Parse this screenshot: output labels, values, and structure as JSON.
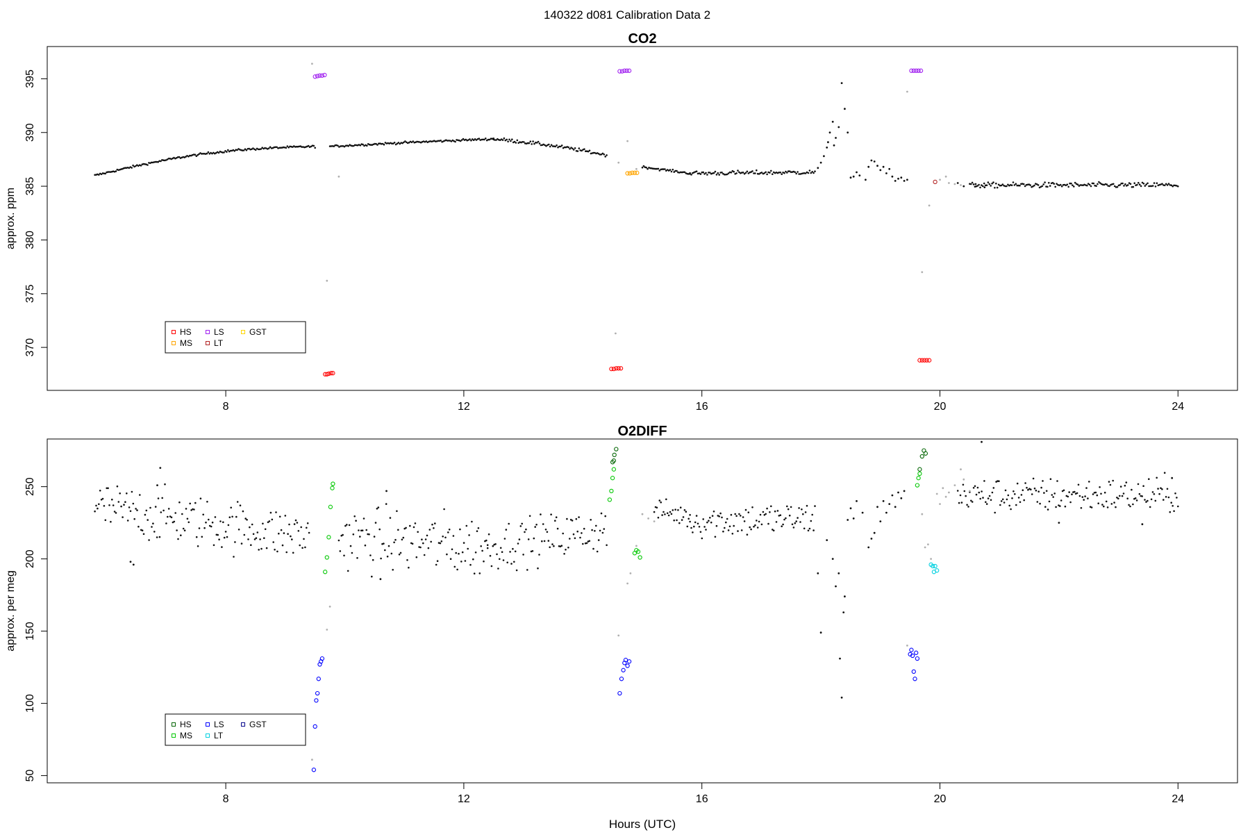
{
  "page_title": "140322   d081   Calibration Data 2",
  "chart_data": [
    {
      "type": "scatter",
      "title": "CO2",
      "ylabel": "approx. ppm",
      "xlabel": "",
      "xlim": [
        5.0,
        25.0
      ],
      "ylim": [
        366.0,
        398.0
      ],
      "xticks": [
        8,
        12,
        16,
        20,
        24
      ],
      "yticks": [
        370,
        375,
        380,
        385,
        390,
        395
      ],
      "legend": {
        "position": "bottom-left",
        "entries": [
          {
            "label": "HS",
            "color": "#ff0000"
          },
          {
            "label": "MS",
            "color": "#ffa500"
          },
          {
            "label": "LS",
            "color": "#a020f0"
          },
          {
            "label": "LT",
            "color": "#b22222"
          },
          {
            "label": "GST",
            "color": "#ffd700"
          }
        ]
      },
      "background_segments": [
        {
          "x0": 5.8,
          "y0": 386.0,
          "x1": 9.5,
          "y1": 388.7,
          "curve": 0.25,
          "noise": 0.05
        },
        {
          "x0": 9.75,
          "y0": 388.7,
          "x1": 12.5,
          "y1": 389.4,
          "curve": 0.05,
          "noise": 0.05
        },
        {
          "x0": 12.5,
          "y0": 389.4,
          "x1": 14.4,
          "y1": 387.9,
          "curve": -0.1,
          "noise": 0.08
        },
        {
          "x0": 15.0,
          "y0": 386.8,
          "x1": 15.8,
          "y1": 386.2,
          "curve": 0.0,
          "noise": 0.05
        },
        {
          "x0": 15.8,
          "y0": 386.2,
          "x1": 17.9,
          "y1": 386.3,
          "curve": 0.0,
          "noise": 0.1
        },
        {
          "x0": 20.5,
          "y0": 385.1,
          "x1": 24.0,
          "y1": 385.1,
          "curve": 0.0,
          "noise": 0.12
        }
      ],
      "background_points": [
        [
          17.95,
          386.7
        ],
        [
          18.0,
          387.2
        ],
        [
          18.05,
          387.8
        ],
        [
          18.1,
          388.6
        ],
        [
          18.12,
          389.1
        ],
        [
          18.15,
          390.0
        ],
        [
          18.2,
          391.0
        ],
        [
          18.22,
          388.8
        ],
        [
          18.25,
          389.5
        ],
        [
          18.3,
          390.5
        ],
        [
          18.35,
          394.6
        ],
        [
          18.4,
          392.2
        ],
        [
          18.45,
          390.0
        ],
        [
          18.5,
          385.8
        ],
        [
          18.55,
          385.9
        ],
        [
          18.6,
          386.3
        ],
        [
          18.65,
          386.0
        ],
        [
          18.75,
          385.6
        ],
        [
          18.8,
          386.8
        ],
        [
          18.85,
          387.4
        ],
        [
          18.9,
          387.3
        ],
        [
          18.95,
          386.9
        ],
        [
          19.0,
          386.5
        ],
        [
          19.05,
          386.8
        ],
        [
          19.1,
          386.2
        ],
        [
          19.15,
          386.6
        ],
        [
          19.2,
          385.9
        ],
        [
          19.25,
          385.5
        ],
        [
          19.3,
          385.7
        ],
        [
          19.35,
          385.8
        ],
        [
          19.4,
          385.5
        ],
        [
          19.45,
          385.6
        ],
        [
          20.3,
          385.3
        ],
        [
          20.4,
          385.0
        ],
        [
          20.6,
          385.2
        ],
        [
          20.75,
          384.9
        ]
      ],
      "grey_points": [
        [
          9.45,
          396.4
        ],
        [
          9.7,
          376.2
        ],
        [
          9.9,
          385.9
        ],
        [
          14.55,
          371.3
        ],
        [
          14.6,
          387.2
        ],
        [
          14.75,
          389.2
        ],
        [
          14.9,
          386.6
        ],
        [
          19.45,
          393.8
        ],
        [
          19.7,
          377.0
        ],
        [
          19.82,
          383.2
        ],
        [
          20.0,
          385.6
        ],
        [
          20.1,
          385.9
        ],
        [
          20.15,
          385.3
        ],
        [
          20.25,
          385.2
        ],
        [
          20.35,
          385.1
        ]
      ],
      "series": [
        {
          "name": "HS",
          "color": "#ff0000",
          "points": [
            [
              9.67,
              367.5
            ],
            [
              9.7,
              367.5
            ],
            [
              9.73,
              367.55
            ],
            [
              9.77,
              367.6
            ],
            [
              9.8,
              367.6
            ],
            [
              14.48,
              368.0
            ],
            [
              14.52,
              368.0
            ],
            [
              14.56,
              368.05
            ],
            [
              14.6,
              368.05
            ],
            [
              14.64,
              368.05
            ],
            [
              19.66,
              368.8
            ],
            [
              19.7,
              368.8
            ],
            [
              19.74,
              368.8
            ],
            [
              19.78,
              368.8
            ],
            [
              19.82,
              368.8
            ]
          ]
        },
        {
          "name": "MS",
          "color": "#ffa500",
          "points": [
            [
              14.75,
              386.2
            ],
            [
              14.79,
              386.2
            ],
            [
              14.83,
              386.25
            ],
            [
              14.87,
              386.25
            ],
            [
              14.91,
              386.25
            ]
          ]
        },
        {
          "name": "LS",
          "color": "#a020f0",
          "points": [
            [
              9.5,
              395.2
            ],
            [
              9.54,
              395.25
            ],
            [
              9.58,
              395.3
            ],
            [
              9.62,
              395.3
            ],
            [
              9.66,
              395.35
            ],
            [
              14.62,
              395.7
            ],
            [
              14.66,
              395.7
            ],
            [
              14.7,
              395.75
            ],
            [
              14.74,
              395.75
            ],
            [
              14.78,
              395.75
            ],
            [
              19.52,
              395.75
            ],
            [
              19.56,
              395.75
            ],
            [
              19.6,
              395.75
            ],
            [
              19.64,
              395.75
            ],
            [
              19.68,
              395.75
            ]
          ]
        },
        {
          "name": "LT",
          "color": "#b22222",
          "points": [
            [
              19.92,
              385.4
            ]
          ]
        },
        {
          "name": "GST",
          "color": "#ffd700",
          "points": []
        }
      ]
    },
    {
      "type": "scatter",
      "title": "O2DIFF",
      "ylabel": "approx. per meg",
      "xlabel": "Hours (UTC)",
      "xlim": [
        5.0,
        25.0
      ],
      "ylim": [
        45.0,
        283.0
      ],
      "xticks": [
        8,
        12,
        16,
        20,
        24
      ],
      "yticks": [
        50,
        100,
        150,
        200,
        250
      ],
      "legend": {
        "position": "bottom-left",
        "entries": [
          {
            "label": "HS",
            "color": "#006400"
          },
          {
            "label": "MS",
            "color": "#00c800"
          },
          {
            "label": "LS",
            "color": "#0000ff"
          },
          {
            "label": "LT",
            "color": "#00d0e0"
          },
          {
            "label": "GST",
            "color": "#00008b"
          }
        ]
      },
      "background_segments": [
        {
          "x0": 5.8,
          "y0": 236.0,
          "x1": 9.4,
          "y1": 215.0,
          "curve": 0.0,
          "noise": 9.0
        },
        {
          "x0": 9.9,
          "y0": 215.0,
          "x1": 12.4,
          "y1": 208.0,
          "curve": 0.0,
          "noise": 11.0
        },
        {
          "x0": 12.4,
          "y0": 208.0,
          "x1": 14.4,
          "y1": 221.0,
          "curve": 0.0,
          "noise": 8.0
        },
        {
          "x0": 15.2,
          "y0": 234.0,
          "x1": 15.8,
          "y1": 229.0,
          "curve": 0.0,
          "noise": 4.0
        },
        {
          "x0": 15.8,
          "y0": 226.0,
          "x1": 17.9,
          "y1": 228.0,
          "curve": 0.05,
          "noise": 6.0
        },
        {
          "x0": 20.3,
          "y0": 244.0,
          "x1": 24.0,
          "y1": 244.0,
          "curve": 0.0,
          "noise": 6.0
        }
      ],
      "background_points": [
        [
          6.4,
          198.0
        ],
        [
          6.45,
          196.0
        ],
        [
          6.9,
          263.0
        ],
        [
          6.85,
          251.0
        ],
        [
          10.6,
          186.0
        ],
        [
          10.7,
          247.0
        ],
        [
          17.95,
          190.0
        ],
        [
          18.0,
          149.0
        ],
        [
          18.1,
          213.0
        ],
        [
          18.2,
          200.0
        ],
        [
          18.25,
          181.0
        ],
        [
          18.3,
          190.0
        ],
        [
          18.32,
          131.0
        ],
        [
          18.35,
          104.0
        ],
        [
          18.38,
          163.0
        ],
        [
          18.4,
          174.0
        ],
        [
          18.45,
          227.0
        ],
        [
          18.5,
          235.0
        ],
        [
          18.55,
          228.0
        ],
        [
          18.6,
          240.0
        ],
        [
          18.7,
          232.0
        ],
        [
          18.8,
          208.0
        ],
        [
          18.85,
          214.0
        ],
        [
          18.9,
          218.0
        ],
        [
          18.95,
          236.0
        ],
        [
          19.0,
          226.0
        ],
        [
          19.05,
          240.0
        ],
        [
          19.1,
          232.0
        ],
        [
          19.15,
          238.0
        ],
        [
          19.2,
          244.0
        ],
        [
          19.25,
          236.0
        ],
        [
          19.3,
          246.0
        ],
        [
          19.35,
          242.0
        ],
        [
          19.4,
          247.0
        ],
        [
          20.7,
          281.0
        ],
        [
          23.4,
          224.0
        ],
        [
          22.0,
          225.0
        ],
        [
          23.9,
          256.0
        ]
      ],
      "grey_points": [
        [
          9.45,
          61.0
        ],
        [
          9.75,
          167.0
        ],
        [
          9.7,
          151.0
        ],
        [
          14.6,
          147.0
        ],
        [
          14.75,
          183.0
        ],
        [
          14.8,
          190.0
        ],
        [
          14.9,
          209.0
        ],
        [
          15.0,
          231.0
        ],
        [
          15.1,
          228.0
        ],
        [
          15.2,
          226.0
        ],
        [
          19.45,
          140.0
        ],
        [
          19.7,
          231.0
        ],
        [
          19.75,
          208.0
        ],
        [
          19.8,
          210.0
        ],
        [
          19.85,
          200.0
        ],
        [
          19.95,
          245.0
        ],
        [
          20.0,
          238.0
        ],
        [
          20.05,
          249.0
        ],
        [
          20.1,
          243.0
        ],
        [
          20.15,
          246.0
        ],
        [
          20.25,
          251.0
        ],
        [
          20.35,
          262.0
        ],
        [
          20.4,
          255.0
        ],
        [
          20.5,
          247.0
        ]
      ],
      "series": [
        {
          "name": "HS",
          "color": "#006400",
          "points": [
            [
              14.5,
              267.0
            ],
            [
              14.53,
              272.0
            ],
            [
              14.56,
              276.0
            ],
            [
              14.52,
              268.0
            ],
            [
              19.66,
              262.0
            ],
            [
              19.7,
              271.0
            ],
            [
              19.73,
              275.0
            ],
            [
              19.76,
              273.0
            ]
          ]
        },
        {
          "name": "MS",
          "color": "#00c800",
          "points": [
            [
              9.67,
              191.0
            ],
            [
              9.7,
              201.0
            ],
            [
              9.73,
              215.0
            ],
            [
              9.76,
              236.0
            ],
            [
              9.79,
              249.0
            ],
            [
              9.8,
              252.0
            ],
            [
              14.45,
              241.0
            ],
            [
              14.48,
              247.0
            ],
            [
              14.5,
              256.0
            ],
            [
              14.52,
              262.0
            ],
            [
              14.87,
              204.0
            ],
            [
              14.9,
              206.0
            ],
            [
              14.93,
              205.0
            ],
            [
              14.96,
              201.0
            ],
            [
              19.62,
              251.0
            ],
            [
              19.64,
              256.0
            ],
            [
              19.66,
              259.0
            ]
          ]
        },
        {
          "name": "LS",
          "color": "#0000ff",
          "points": [
            [
              9.48,
              54.0
            ],
            [
              9.5,
              84.0
            ],
            [
              9.52,
              102.0
            ],
            [
              9.54,
              107.0
            ],
            [
              9.56,
              117.0
            ],
            [
              9.58,
              127.0
            ],
            [
              9.6,
              129.0
            ],
            [
              9.62,
              131.0
            ],
            [
              14.62,
              107.0
            ],
            [
              14.65,
              117.0
            ],
            [
              14.68,
              123.0
            ],
            [
              14.7,
              128.0
            ],
            [
              14.72,
              130.0
            ],
            [
              14.75,
              126.0
            ],
            [
              14.78,
              129.0
            ],
            [
              19.5,
              134.0
            ],
            [
              19.52,
              137.0
            ],
            [
              19.54,
              133.0
            ],
            [
              19.56,
              122.0
            ],
            [
              19.58,
              117.0
            ],
            [
              19.6,
              135.0
            ],
            [
              19.62,
              131.0
            ]
          ]
        },
        {
          "name": "LT",
          "color": "#00d0e0",
          "points": [
            [
              19.85,
              196.0
            ],
            [
              19.88,
              195.0
            ],
            [
              19.9,
              191.0
            ],
            [
              19.92,
              195.0
            ],
            [
              19.95,
              192.0
            ]
          ]
        },
        {
          "name": "GST",
          "color": "#00008b",
          "points": []
        }
      ]
    }
  ]
}
